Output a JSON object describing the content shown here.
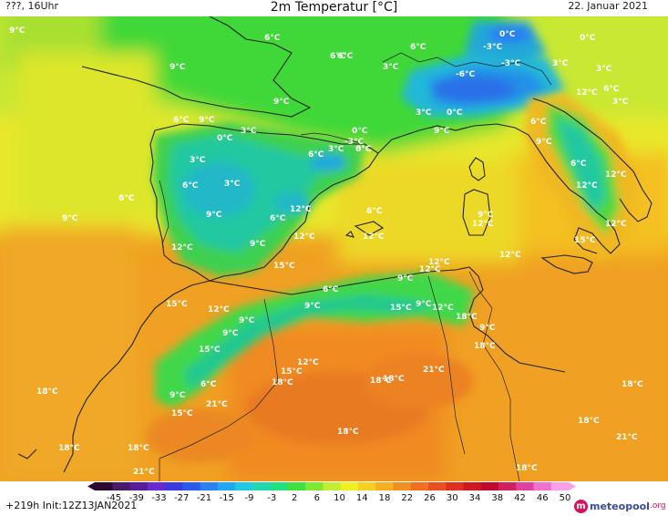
{
  "header": {
    "left": "???, 16Uhr",
    "title": "2m Temperatur [°C]",
    "date": "22. Januar 2021"
  },
  "footer": {
    "run_info": "+219h  Init:12Z13JAN2021",
    "logo_main": "meteopool",
    "logo_tld": ".org"
  },
  "legend": {
    "ticks": [
      "-45",
      "-39",
      "-33",
      "-27",
      "-21",
      "-15",
      "-9",
      "-3",
      "2",
      "6",
      "10",
      "14",
      "18",
      "22",
      "26",
      "30",
      "34",
      "38",
      "42",
      "46",
      "50"
    ],
    "colors": [
      "#2a0a30",
      "#4a1a6a",
      "#5a1a9a",
      "#6a2ad0",
      "#3a3ae0",
      "#2a5ae8",
      "#2a80f0",
      "#20a8f0",
      "#20c8e0",
      "#20d8b0",
      "#20e080",
      "#40e040",
      "#80e830",
      "#c0ee30",
      "#f0f020",
      "#f8d020",
      "#f8b020",
      "#f09020",
      "#f07020",
      "#e85020",
      "#e03020",
      "#d01820",
      "#c00830",
      "#d02060",
      "#e040a0",
      "#f070d0",
      "#f8a0e8"
    ]
  },
  "map_labels": [
    {
      "text": "9°C",
      "color": "#ffffff"
    },
    {
      "text": "6°C",
      "color": "#ffffff"
    },
    {
      "text": "9°C",
      "color": "#ffffff"
    },
    {
      "text": "6°C",
      "color": "#ffffff"
    },
    {
      "text": "3°C",
      "color": "#ffffff"
    },
    {
      "text": "6°C",
      "color": "#ffffff"
    },
    {
      "text": "-3°C",
      "color": "#ffffff"
    },
    {
      "text": "0°C",
      "color": "#ffffff"
    },
    {
      "text": "0°C",
      "color": "#ffffff"
    },
    {
      "text": "-6°C",
      "color": "#ffffff"
    },
    {
      "text": "-3°C",
      "color": "#ffffff"
    },
    {
      "text": "3°C",
      "color": "#ffffff"
    },
    {
      "text": "3°C",
      "color": "#ffffff"
    },
    {
      "text": "6°C",
      "color": "#ffffff"
    },
    {
      "text": "0°C",
      "color": "#ffffff"
    },
    {
      "text": "12°C",
      "color": "#ffffff"
    },
    {
      "text": "6°C",
      "color": "#ffffff"
    },
    {
      "text": "3°C",
      "color": "#ffffff"
    },
    {
      "text": "9°C",
      "color": "#ffffff"
    },
    {
      "text": "3°C",
      "color": "#ffffff"
    },
    {
      "text": "0°C",
      "color": "#ffffff"
    },
    {
      "text": "9°C",
      "color": "#ffffff"
    },
    {
      "text": "6°C",
      "color": "#ffffff"
    },
    {
      "text": "9°C",
      "color": "#ffffff"
    },
    {
      "text": "3°C",
      "color": "#ffffff"
    },
    {
      "text": "0°C",
      "color": "#ffffff"
    },
    {
      "text": "6°C",
      "color": "#ffffff"
    },
    {
      "text": "-3°C",
      "color": "#ffffff"
    },
    {
      "text": "3°C",
      "color": "#ffffff"
    },
    {
      "text": "0°C",
      "color": "#ffffff"
    },
    {
      "text": "6°C",
      "color": "#ffffff"
    },
    {
      "text": "9°C",
      "color": "#ffffff"
    },
    {
      "text": "6°C",
      "color": "#ffffff"
    },
    {
      "text": "6°C",
      "color": "#ffffff"
    },
    {
      "text": "3°C",
      "color": "#ffffff"
    },
    {
      "text": "6°C",
      "color": "#ffffff"
    },
    {
      "text": "3°C",
      "color": "#ffffff"
    },
    {
      "text": "6°C",
      "color": "#ffffff"
    },
    {
      "text": "12°C",
      "color": "#ffffff"
    },
    {
      "text": "12°C",
      "color": "#ffffff"
    },
    {
      "text": "6°C",
      "color": "#ffffff"
    },
    {
      "text": "12°C",
      "color": "#ffffff"
    },
    {
      "text": "9°C",
      "color": "#ffffff"
    },
    {
      "text": "6°C",
      "color": "#ffffff"
    },
    {
      "text": "9°C",
      "color": "#ffffff"
    },
    {
      "text": "9°C",
      "color": "#ffffff"
    },
    {
      "text": "12°C",
      "color": "#ffffff"
    },
    {
      "text": "9°C",
      "color": "#ffffff"
    },
    {
      "text": "12°C",
      "color": "#ffffff"
    },
    {
      "text": "12°C",
      "color": "#ffffff"
    },
    {
      "text": "12°C",
      "color": "#ffffff"
    },
    {
      "text": "15°C",
      "color": "#ffffff"
    },
    {
      "text": "12°C",
      "color": "#ffffff"
    },
    {
      "text": "12°C",
      "color": "#ffffff"
    },
    {
      "text": "15°C",
      "color": "#ffffff"
    },
    {
      "text": "12°C",
      "color": "#ffffff"
    },
    {
      "text": "6°C",
      "color": "#ffffff"
    },
    {
      "text": "9°C",
      "color": "#ffffff"
    },
    {
      "text": "12°C",
      "color": "#ffffff"
    },
    {
      "text": "15°C",
      "color": "#ffffff"
    },
    {
      "text": "12°C",
      "color": "#ffffff"
    },
    {
      "text": "9°C",
      "color": "#ffffff"
    },
    {
      "text": "9°C",
      "color": "#ffffff"
    },
    {
      "text": "15°C",
      "color": "#ffffff"
    },
    {
      "text": "9°C",
      "color": "#ffffff"
    },
    {
      "text": "12°C",
      "color": "#ffffff"
    },
    {
      "text": "18°C",
      "color": "#ffffff"
    },
    {
      "text": "9°C",
      "color": "#ffffff"
    },
    {
      "text": "9°C",
      "color": "#ffffff"
    },
    {
      "text": "15°C",
      "color": "#ffffff"
    },
    {
      "text": "18°C",
      "color": "#ffffff"
    },
    {
      "text": "12°C",
      "color": "#ffffff"
    },
    {
      "text": "6°C",
      "color": "#ffffff"
    },
    {
      "text": "15°C",
      "color": "#ffffff"
    },
    {
      "text": "18°C",
      "color": "#ffffff"
    },
    {
      "text": "18°C",
      "color": "#ffffff"
    },
    {
      "text": "21°C",
      "color": "#ffffff"
    },
    {
      "text": "18°C",
      "color": "#ffffff"
    },
    {
      "text": "18°C",
      "color": "#ffffff"
    },
    {
      "text": "9°C",
      "color": "#ffffff"
    },
    {
      "text": "21°C",
      "color": "#ffffff"
    },
    {
      "text": "15°C",
      "color": "#ffffff"
    },
    {
      "text": "18°C",
      "color": "#ffffff"
    },
    {
      "text": "18°C",
      "color": "#ffffff"
    },
    {
      "text": "21°C",
      "color": "#ffffff"
    },
    {
      "text": "18°C",
      "color": "#ffffff"
    },
    {
      "text": "18°C",
      "color": "#ffffff"
    },
    {
      "text": "18°C",
      "color": "#ffffff"
    },
    {
      "text": "21°C",
      "color": "#ffffff"
    },
    {
      "text": "18°C",
      "color": "#ffffff"
    }
  ]
}
